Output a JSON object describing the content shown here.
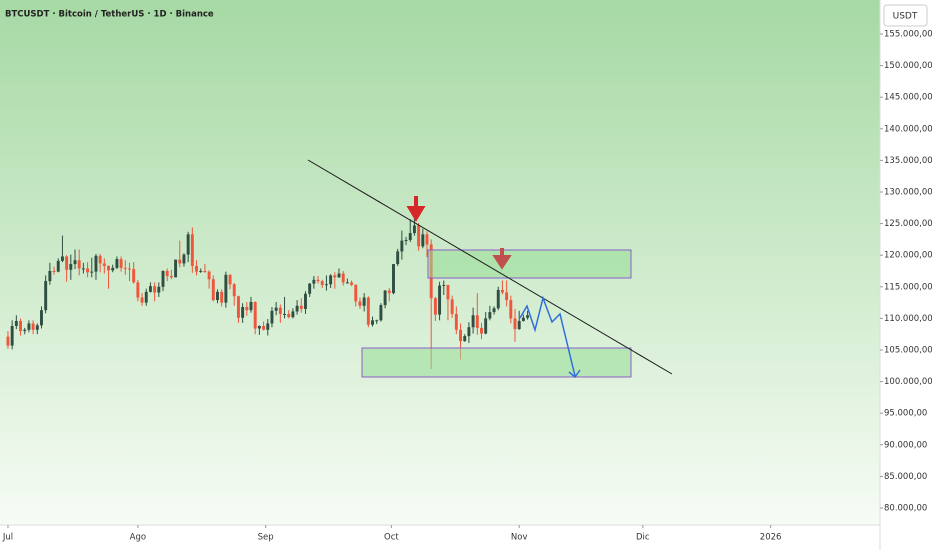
{
  "chart_data": {
    "type": "candlestick",
    "title": "BTCUSDT · Bitcoin / TetherUS · 1D · Binance",
    "currency_label": "USDT",
    "up_color": "#2f4f43",
    "down_color": "#f0563c",
    "x": [
      0,
      1,
      2,
      3,
      4,
      5,
      6,
      7,
      8,
      9,
      10,
      11,
      12,
      13,
      14,
      15,
      16,
      17,
      18,
      19,
      20,
      21,
      22,
      23,
      24,
      25,
      26,
      27,
      28,
      29,
      30,
      31,
      32,
      33,
      34,
      35,
      36,
      37,
      38,
      39,
      40,
      41,
      42,
      43,
      44,
      45,
      46,
      47,
      48,
      49,
      50,
      51,
      52,
      53,
      54,
      55,
      56,
      57,
      58,
      59,
      60,
      61,
      62,
      63,
      64,
      65,
      66,
      67,
      68,
      69,
      70,
      71,
      72,
      73,
      74,
      75,
      76,
      77,
      78,
      79,
      80,
      81,
      82,
      83,
      84,
      85,
      86,
      87,
      88,
      89,
      90,
      91,
      92,
      93,
      94,
      95,
      96,
      97,
      98,
      99,
      100,
      101,
      102,
      103,
      104,
      105,
      106,
      107,
      108,
      109,
      110,
      111,
      112,
      113,
      114,
      115,
      116,
      117,
      118,
      119,
      120,
      121,
      122,
      123,
      124
    ],
    "open": [
      107100,
      105700,
      108800,
      109600,
      108000,
      108200,
      109200,
      108200,
      108900,
      111300,
      115900,
      117500,
      117400,
      119100,
      119800,
      117700,
      118600,
      119200,
      117900,
      117900,
      117300,
      117400,
      119900,
      118700,
      118300,
      117600,
      118000,
      119400,
      118000,
      117900,
      117800,
      115700,
      113300,
      112500,
      114200,
      115100,
      114100,
      115000,
      117500,
      116700,
      116500,
      119300,
      118700,
      120100,
      123300,
      118300,
      117400,
      117500,
      117400,
      116200,
      112900,
      114200,
      112500,
      116900,
      115400,
      113500,
      110100,
      111800,
      111300,
      112600,
      108400,
      108800,
      108200,
      109200,
      111200,
      111700,
      110700,
      110700,
      110200,
      111100,
      112000,
      111500,
      113900,
      115500,
      116100,
      115900,
      115300,
      115400,
      116800,
      116500,
      117100,
      115700,
      115700,
      115300,
      112700,
      112000,
      113300,
      109000,
      109700,
      109700,
      112100,
      114400,
      114000,
      118600,
      120600,
      122300,
      122400,
      123500,
      124700,
      121400,
      123300,
      121700,
      113200,
      110600,
      115200,
      115300,
      113000,
      110700,
      108200,
      106400,
      107200,
      108600,
      110500,
      108500,
      107600,
      110000,
      111000,
      111600,
      114500,
      114100,
      112900,
      110000,
      108300,
      109600,
      110100
    ],
    "high": [
      108000,
      109700,
      110500,
      110000,
      108500,
      109700,
      109700,
      109200,
      111900,
      116800,
      118800,
      118200,
      119500,
      123100,
      120000,
      120100,
      120900,
      120900,
      118800,
      118900,
      119600,
      120200,
      120200,
      119500,
      118400,
      118500,
      119800,
      119800,
      119200,
      118800,
      118900,
      116100,
      114000,
      114700,
      115700,
      115700,
      115700,
      117600,
      117900,
      117700,
      119300,
      122300,
      120300,
      123700,
      124400,
      119200,
      117900,
      118600,
      117600,
      116800,
      114600,
      114600,
      117400,
      117000,
      115600,
      113600,
      112400,
      112600,
      113400,
      112700,
      108900,
      109500,
      109900,
      111800,
      112600,
      112200,
      113400,
      111300,
      111600,
      112900,
      113200,
      114300,
      115600,
      116700,
      116700,
      116100,
      116800,
      117000,
      117300,
      117900,
      117500,
      116300,
      116000,
      115400,
      113300,
      114000,
      113500,
      110300,
      109800,
      112400,
      114500,
      114800,
      118600,
      121000,
      123900,
      122900,
      125700,
      126200,
      125100,
      124200,
      123800,
      122500,
      113400,
      115800,
      116000,
      115300,
      113600,
      111900,
      109200,
      107500,
      109400,
      111700,
      114000,
      109300,
      111000,
      112000,
      111900,
      115000,
      116000,
      116000,
      113600,
      111500,
      111200,
      110600,
      111200
    ],
    "low": [
      105200,
      105100,
      108300,
      107300,
      107500,
      107800,
      107500,
      107500,
      108400,
      110800,
      115300,
      116900,
      117300,
      118900,
      115800,
      116100,
      117800,
      116800,
      117100,
      116500,
      116500,
      116100,
      117300,
      117100,
      114700,
      117300,
      117800,
      117400,
      116900,
      115900,
      115500,
      112700,
      112000,
      112000,
      114100,
      112700,
      113400,
      114300,
      115900,
      116200,
      116500,
      118100,
      118200,
      118900,
      117200,
      116800,
      117200,
      117200,
      114700,
      112700,
      112400,
      111900,
      111700,
      114600,
      112000,
      109300,
      109300,
      110400,
      110900,
      107500,
      107400,
      108100,
      107300,
      108600,
      110500,
      109300,
      110000,
      110000,
      110000,
      110600,
      110900,
      110700,
      113400,
      114700,
      115500,
      114800,
      114400,
      114800,
      114700,
      116400,
      115200,
      115500,
      115100,
      111900,
      111500,
      111100,
      108600,
      108700,
      109100,
      109500,
      111600,
      112700,
      113800,
      118300,
      119300,
      121600,
      122100,
      123100,
      120700,
      121100,
      119700,
      102000,
      109600,
      109700,
      113700,
      109700,
      110100,
      107500,
      103500,
      106300,
      106100,
      107600,
      107400,
      106700,
      107500,
      109700,
      110600,
      111300,
      113800,
      111900,
      109200,
      106300,
      108200,
      109500,
      109800
    ],
    "close": [
      105700,
      108800,
      109600,
      108000,
      108200,
      109200,
      108200,
      108900,
      111300,
      115900,
      117500,
      117400,
      119100,
      119800,
      117700,
      118600,
      119200,
      117900,
      117900,
      117300,
      117400,
      119900,
      118700,
      118300,
      117600,
      118000,
      119400,
      118000,
      117900,
      117800,
      115700,
      113300,
      112500,
      114200,
      115100,
      114100,
      115000,
      117500,
      116700,
      116500,
      119300,
      118700,
      120100,
      123300,
      118300,
      117400,
      117500,
      117400,
      116200,
      112900,
      114200,
      112500,
      116900,
      115400,
      113500,
      110100,
      111800,
      111300,
      112600,
      108400,
      108800,
      108200,
      109200,
      111200,
      111700,
      110700,
      110700,
      110200,
      111100,
      112000,
      111500,
      113900,
      115500,
      116100,
      115900,
      115300,
      115400,
      116800,
      116500,
      117100,
      115700,
      115700,
      115300,
      112700,
      112000,
      113300,
      109000,
      109700,
      109700,
      112100,
      114400,
      114000,
      118600,
      120600,
      122300,
      122400,
      123500,
      124700,
      121400,
      123300,
      121700,
      113200,
      110600,
      115200,
      115300,
      113000,
      110700,
      108200,
      106400,
      107200,
      108600,
      110500,
      108500,
      107600,
      110000,
      111000,
      111600,
      114500,
      114100,
      112900,
      110000,
      108300,
      109600,
      110100,
      110500
    ],
    "xlim": [
      -1.9,
      208.1
    ],
    "xticks": [
      {
        "value": 0,
        "label": "Jul"
      },
      {
        "value": 31,
        "label": "Ago"
      },
      {
        "value": 61.5,
        "label": "Sep"
      },
      {
        "value": 91.5,
        "label": "Oct"
      },
      {
        "value": 122,
        "label": "Nov"
      },
      {
        "value": 151.5,
        "label": "Dic"
      },
      {
        "value": 182,
        "label": "2026"
      }
    ],
    "ylim": [
      77310,
      160380
    ],
    "yticks": [
      {
        "value": 80000,
        "label": "80.000,00"
      },
      {
        "value": 85000,
        "label": "85.000,00"
      },
      {
        "value": 90000,
        "label": "90.000,00"
      },
      {
        "value": 95000,
        "label": "95.000,00"
      },
      {
        "value": 100000,
        "label": "100.000,00"
      },
      {
        "value": 105000,
        "label": "105.000,00"
      },
      {
        "value": 110000,
        "label": "110.000,00"
      },
      {
        "value": 115000,
        "label": "115.000,00"
      },
      {
        "value": 120000,
        "label": "120.000,00"
      },
      {
        "value": 125000,
        "label": "125.000,00"
      },
      {
        "value": 130000,
        "label": "130.000,00"
      },
      {
        "value": 135000,
        "label": "135.000,00"
      },
      {
        "value": 140000,
        "label": "140.000,00"
      },
      {
        "value": 145000,
        "label": "145.000,00"
      },
      {
        "value": 150000,
        "label": "150.000,00"
      },
      {
        "value": 155000,
        "label": "155.000,00"
      }
    ]
  }
}
